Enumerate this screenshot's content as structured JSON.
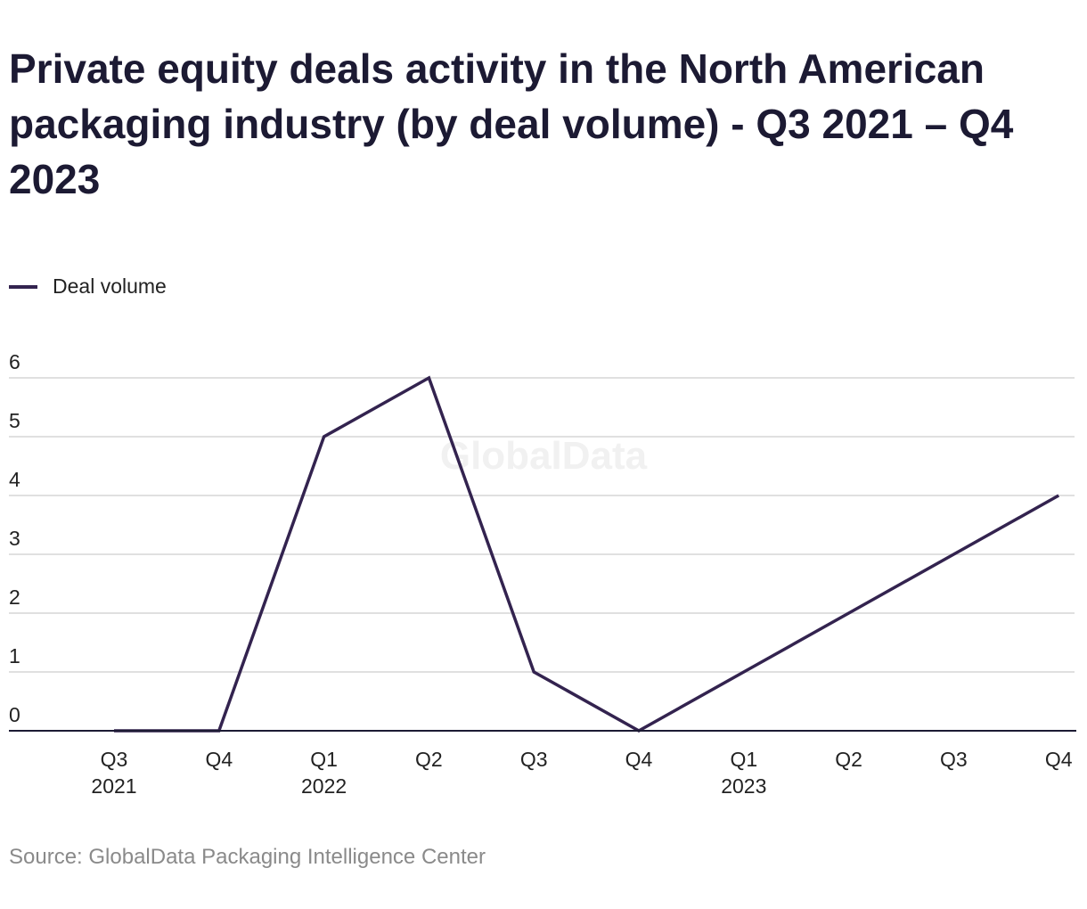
{
  "chart_data": {
    "type": "line",
    "title": "Private equity deals activity in the North American packaging industry (by deal volume) - Q3 2021 – Q4 2023",
    "source": "Source: GlobalData Packaging Intelligence Center",
    "watermark": "GlobalData",
    "categories": [
      "Q3",
      "Q4",
      "Q1",
      "Q2",
      "Q3",
      "Q4",
      "Q1",
      "Q2",
      "Q3",
      "Q4"
    ],
    "year_labels": [
      "2021",
      "",
      "2022",
      "",
      "",
      "",
      "2023",
      "",
      "",
      ""
    ],
    "series": [
      {
        "name": "Deal volume",
        "values": [
          0,
          0,
          5,
          6,
          1,
          0,
          1,
          2,
          3,
          4
        ],
        "color": "#33234f"
      }
    ],
    "ylim": [
      0,
      6
    ],
    "yticks": [
      0,
      1,
      2,
      3,
      4,
      5,
      6
    ],
    "grid": true,
    "legend_position": "top-left"
  }
}
